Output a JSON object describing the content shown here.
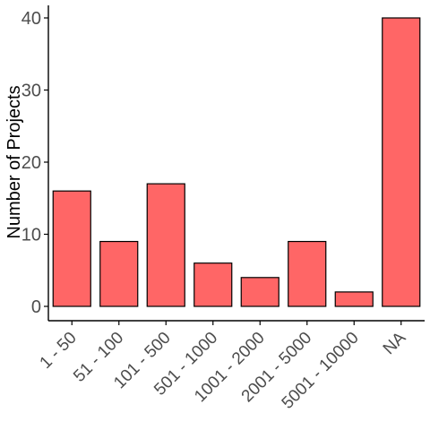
{
  "chart_data": {
    "type": "bar",
    "title": "",
    "xlabel": "",
    "ylabel": "Number of Projects",
    "categories": [
      "1 - 50",
      "51 - 100",
      "101 - 500",
      "501 - 1000",
      "1001 - 2000",
      "2001 - 5000",
      "5001 - 10000",
      "NA"
    ],
    "values": [
      16,
      9,
      17,
      6,
      4,
      9,
      2,
      40
    ],
    "ylim": [
      0,
      42
    ],
    "yticks": [
      0,
      10,
      20,
      30,
      40
    ],
    "grid": false,
    "legend": "none",
    "colors": {
      "bar_fill": "#ff6666",
      "bar_stroke": "#000000",
      "axis": "#000000"
    }
  }
}
